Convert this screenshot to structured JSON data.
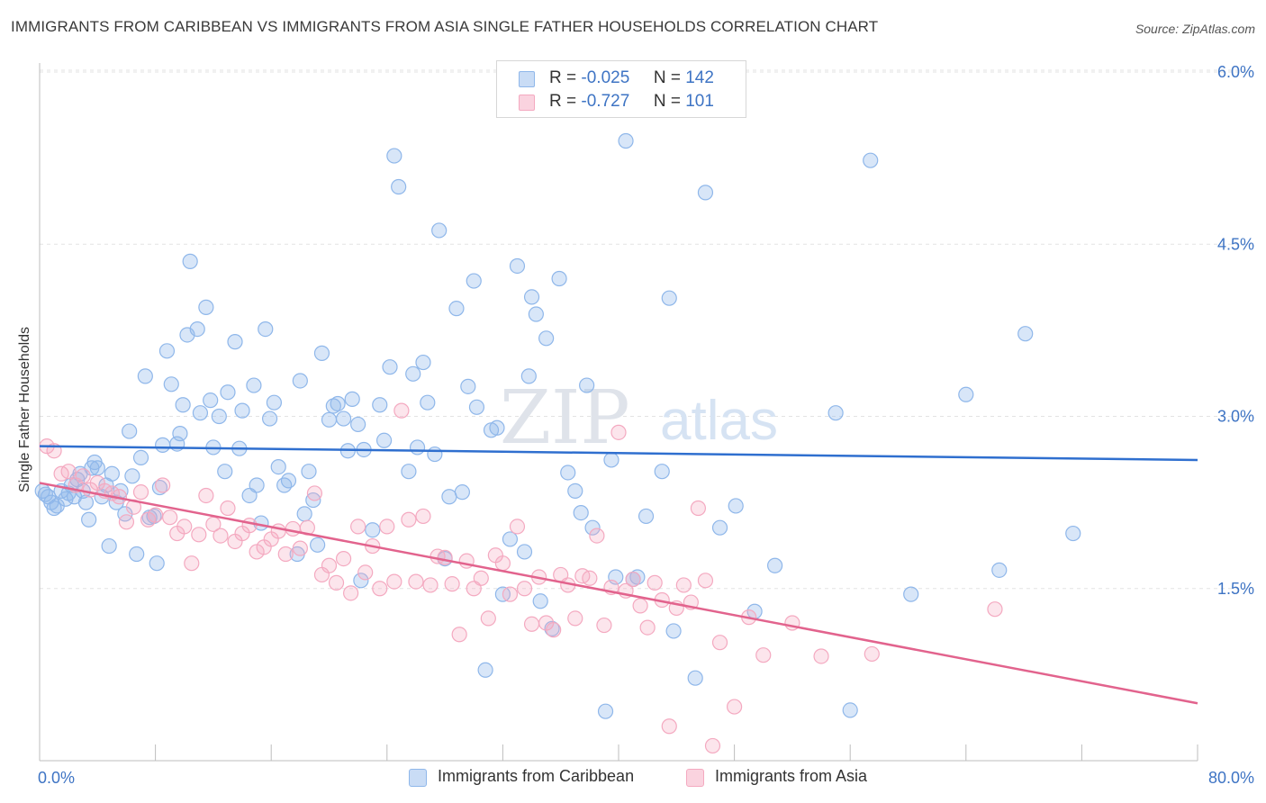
{
  "title": "IMMIGRANTS FROM CARIBBEAN VS IMMIGRANTS FROM ASIA SINGLE FATHER HOUSEHOLDS CORRELATION CHART",
  "source": "Source: ZipAtlas.com",
  "watermark": {
    "zip": "ZIP",
    "atlas": "atlas"
  },
  "legend_top": {
    "rows": [
      {
        "r_label": "R =",
        "r_value": "-0.025",
        "n_label": "N =",
        "n_value": "142"
      },
      {
        "r_label": "R =",
        "r_value": "-0.727",
        "n_label": "N =",
        "n_value": "101"
      }
    ]
  },
  "chart_data": {
    "type": "scatter",
    "title": "IMMIGRANTS FROM CARIBBEAN VS IMMIGRANTS FROM ASIA SINGLE FATHER HOUSEHOLDS CORRELATION CHART",
    "xlabel": "",
    "ylabel": "Single Father Households",
    "xlim": [
      0,
      80
    ],
    "ylim": [
      0,
      6.2
    ],
    "x_tick_labels": [
      "0.0%",
      "80.0%"
    ],
    "y_tick_labels": [
      "1.5%",
      "3.0%",
      "4.5%",
      "6.0%"
    ],
    "y_ticks": [
      1.5,
      3.0,
      4.5,
      6.0
    ],
    "grid": true,
    "legend_position": "bottom",
    "series": [
      {
        "name": "Immigrants from Caribbean",
        "color": "#8fb7ea",
        "line_color": "#2f6fcf",
        "trend": [
          [
            0,
            2.74
          ],
          [
            80,
            2.62
          ]
        ],
        "points": [
          [
            0.2,
            2.35
          ],
          [
            0.4,
            2.32
          ],
          [
            0.6,
            2.3
          ],
          [
            0.8,
            2.25
          ],
          [
            1.0,
            2.2
          ],
          [
            1.2,
            2.22
          ],
          [
            1.5,
            2.35
          ],
          [
            1.8,
            2.28
          ],
          [
            2.0,
            2.33
          ],
          [
            2.2,
            2.4
          ],
          [
            2.4,
            2.3
          ],
          [
            2.6,
            2.45
          ],
          [
            2.8,
            2.5
          ],
          [
            3.0,
            2.35
          ],
          [
            3.2,
            2.25
          ],
          [
            3.4,
            2.1
          ],
          [
            3.6,
            2.55
          ],
          [
            3.8,
            2.6
          ],
          [
            4.0,
            2.55
          ],
          [
            4.3,
            2.3
          ],
          [
            4.6,
            2.4
          ],
          [
            4.8,
            1.87
          ],
          [
            5.0,
            2.5
          ],
          [
            5.3,
            2.25
          ],
          [
            5.6,
            2.35
          ],
          [
            5.9,
            2.15
          ],
          [
            6.2,
            2.87
          ],
          [
            6.4,
            2.48
          ],
          [
            6.7,
            1.8
          ],
          [
            7.0,
            2.64
          ],
          [
            7.3,
            3.35
          ],
          [
            7.6,
            2.12
          ],
          [
            7.9,
            2.13
          ],
          [
            8.1,
            1.72
          ],
          [
            8.3,
            2.38
          ],
          [
            8.5,
            2.75
          ],
          [
            8.8,
            3.57
          ],
          [
            9.1,
            3.28
          ],
          [
            9.5,
            2.76
          ],
          [
            9.7,
            2.85
          ],
          [
            9.9,
            3.1
          ],
          [
            10.2,
            3.71
          ],
          [
            10.4,
            4.35
          ],
          [
            10.9,
            3.76
          ],
          [
            11.1,
            3.03
          ],
          [
            11.5,
            3.95
          ],
          [
            11.8,
            3.14
          ],
          [
            12.0,
            2.73
          ],
          [
            12.4,
            3.0
          ],
          [
            12.8,
            2.52
          ],
          [
            13.0,
            3.21
          ],
          [
            13.5,
            3.65
          ],
          [
            13.8,
            2.72
          ],
          [
            14.0,
            3.05
          ],
          [
            14.5,
            2.31
          ],
          [
            14.8,
            3.27
          ],
          [
            15.0,
            2.4
          ],
          [
            15.3,
            2.07
          ],
          [
            15.6,
            3.76
          ],
          [
            15.9,
            2.98
          ],
          [
            16.2,
            3.12
          ],
          [
            16.5,
            2.56
          ],
          [
            16.9,
            2.4
          ],
          [
            17.2,
            2.44
          ],
          [
            17.8,
            1.8
          ],
          [
            18.0,
            3.31
          ],
          [
            18.3,
            2.15
          ],
          [
            18.6,
            2.52
          ],
          [
            18.9,
            2.27
          ],
          [
            19.2,
            1.88
          ],
          [
            19.5,
            3.55
          ],
          [
            20.0,
            2.97
          ],
          [
            20.3,
            3.09
          ],
          [
            20.6,
            3.11
          ],
          [
            21.0,
            2.98
          ],
          [
            21.3,
            2.7
          ],
          [
            21.6,
            3.15
          ],
          [
            22.0,
            2.93
          ],
          [
            22.2,
            1.57
          ],
          [
            22.4,
            2.71
          ],
          [
            23.0,
            2.01
          ],
          [
            23.5,
            3.1
          ],
          [
            23.8,
            2.79
          ],
          [
            24.2,
            3.43
          ],
          [
            24.5,
            5.27
          ],
          [
            24.8,
            5.0
          ],
          [
            25.5,
            2.52
          ],
          [
            25.8,
            3.37
          ],
          [
            26.1,
            2.73
          ],
          [
            26.5,
            3.47
          ],
          [
            26.8,
            3.12
          ],
          [
            27.3,
            2.67
          ],
          [
            27.6,
            4.62
          ],
          [
            28.0,
            1.76
          ],
          [
            28.3,
            2.3
          ],
          [
            28.8,
            3.94
          ],
          [
            29.2,
            2.34
          ],
          [
            29.6,
            3.26
          ],
          [
            30.0,
            4.18
          ],
          [
            30.2,
            3.08
          ],
          [
            30.8,
            0.79
          ],
          [
            31.2,
            2.88
          ],
          [
            31.6,
            2.9
          ],
          [
            32.0,
            1.45
          ],
          [
            32.5,
            1.93
          ],
          [
            33.0,
            4.31
          ],
          [
            33.5,
            1.82
          ],
          [
            33.8,
            3.35
          ],
          [
            34.0,
            4.04
          ],
          [
            34.3,
            3.89
          ],
          [
            34.6,
            1.39
          ],
          [
            35.0,
            3.68
          ],
          [
            35.4,
            1.15
          ],
          [
            35.9,
            4.2
          ],
          [
            36.5,
            2.51
          ],
          [
            37.0,
            2.35
          ],
          [
            37.4,
            2.16
          ],
          [
            37.8,
            3.27
          ],
          [
            38.2,
            2.03
          ],
          [
            39.1,
            0.43
          ],
          [
            39.5,
            2.62
          ],
          [
            39.8,
            1.6
          ],
          [
            40.5,
            5.4
          ],
          [
            41.0,
            1.58
          ],
          [
            41.3,
            1.6
          ],
          [
            41.9,
            2.13
          ],
          [
            43.0,
            2.52
          ],
          [
            43.5,
            4.03
          ],
          [
            43.8,
            1.13
          ],
          [
            45.3,
            0.72
          ],
          [
            46.0,
            4.95
          ],
          [
            47.0,
            2.03
          ],
          [
            48.1,
            2.22
          ],
          [
            49.4,
            1.3
          ],
          [
            50.8,
            1.7
          ],
          [
            55.0,
            3.03
          ],
          [
            56.0,
            0.44
          ],
          [
            57.4,
            5.23
          ],
          [
            60.2,
            1.45
          ],
          [
            64.0,
            3.19
          ],
          [
            66.3,
            1.66
          ],
          [
            68.1,
            3.72
          ],
          [
            71.4,
            1.98
          ]
        ]
      },
      {
        "name": "Immigrants from Asia",
        "color": "#f4a9c0",
        "line_color": "#e2638d",
        "trend": [
          [
            0,
            2.42
          ],
          [
            80,
            0.5
          ]
        ],
        "points": [
          [
            0.5,
            2.74
          ],
          [
            1.0,
            2.7
          ],
          [
            1.5,
            2.5
          ],
          [
            2.0,
            2.52
          ],
          [
            2.5,
            2.4
          ],
          [
            3.0,
            2.48
          ],
          [
            3.5,
            2.36
          ],
          [
            4.0,
            2.42
          ],
          [
            4.5,
            2.35
          ],
          [
            5.0,
            2.33
          ],
          [
            5.5,
            2.3
          ],
          [
            6.0,
            2.08
          ],
          [
            6.5,
            2.21
          ],
          [
            7.0,
            2.34
          ],
          [
            7.5,
            2.1
          ],
          [
            8.0,
            2.14
          ],
          [
            8.5,
            2.4
          ],
          [
            9.0,
            2.12
          ],
          [
            9.5,
            1.98
          ],
          [
            10.0,
            2.04
          ],
          [
            10.5,
            1.72
          ],
          [
            11.0,
            1.97
          ],
          [
            11.5,
            2.31
          ],
          [
            12.0,
            2.06
          ],
          [
            12.5,
            1.96
          ],
          [
            13.0,
            2.2
          ],
          [
            13.5,
            1.91
          ],
          [
            14.0,
            1.98
          ],
          [
            14.5,
            2.05
          ],
          [
            15.0,
            1.82
          ],
          [
            15.5,
            1.86
          ],
          [
            16.0,
            1.93
          ],
          [
            16.5,
            2.0
          ],
          [
            17.0,
            1.8
          ],
          [
            17.5,
            2.02
          ],
          [
            18.0,
            1.85
          ],
          [
            18.5,
            2.03
          ],
          [
            19.0,
            2.33
          ],
          [
            19.5,
            1.62
          ],
          [
            20.0,
            1.7
          ],
          [
            20.5,
            1.55
          ],
          [
            21.0,
            1.76
          ],
          [
            21.5,
            1.46
          ],
          [
            22.0,
            2.04
          ],
          [
            22.5,
            1.64
          ],
          [
            23.0,
            1.87
          ],
          [
            23.5,
            1.5
          ],
          [
            24.0,
            2.04
          ],
          [
            24.5,
            1.56
          ],
          [
            25.0,
            3.05
          ],
          [
            25.5,
            2.1
          ],
          [
            26.0,
            1.56
          ],
          [
            26.5,
            2.13
          ],
          [
            27.0,
            1.53
          ],
          [
            27.5,
            1.78
          ],
          [
            28.0,
            1.77
          ],
          [
            28.5,
            1.54
          ],
          [
            29.0,
            1.1
          ],
          [
            29.5,
            1.74
          ],
          [
            30.0,
            1.5
          ],
          [
            30.5,
            1.59
          ],
          [
            31.0,
            1.24
          ],
          [
            31.5,
            1.79
          ],
          [
            32.0,
            1.72
          ],
          [
            32.5,
            1.45
          ],
          [
            33.0,
            2.04
          ],
          [
            33.5,
            1.5
          ],
          [
            34.0,
            1.19
          ],
          [
            34.5,
            1.6
          ],
          [
            35.0,
            1.2
          ],
          [
            35.5,
            1.14
          ],
          [
            36.0,
            1.62
          ],
          [
            36.5,
            1.53
          ],
          [
            37.0,
            1.24
          ],
          [
            37.5,
            1.61
          ],
          [
            38.0,
            1.59
          ],
          [
            38.5,
            1.96
          ],
          [
            39.0,
            1.18
          ],
          [
            39.5,
            1.51
          ],
          [
            40.0,
            2.86
          ],
          [
            40.5,
            1.48
          ],
          [
            41.0,
            1.58
          ],
          [
            41.5,
            1.35
          ],
          [
            42.0,
            1.16
          ],
          [
            42.5,
            1.55
          ],
          [
            43.0,
            1.4
          ],
          [
            43.5,
            0.3
          ],
          [
            44.0,
            1.33
          ],
          [
            44.5,
            1.53
          ],
          [
            45.0,
            1.38
          ],
          [
            45.5,
            2.2
          ],
          [
            46.0,
            1.57
          ],
          [
            46.5,
            0.13
          ],
          [
            47.0,
            1.03
          ],
          [
            48.0,
            0.47
          ],
          [
            49.0,
            1.25
          ],
          [
            50.0,
            0.92
          ],
          [
            52.0,
            1.2
          ],
          [
            54.0,
            0.91
          ],
          [
            57.5,
            0.93
          ],
          [
            66.0,
            1.32
          ]
        ]
      }
    ]
  }
}
